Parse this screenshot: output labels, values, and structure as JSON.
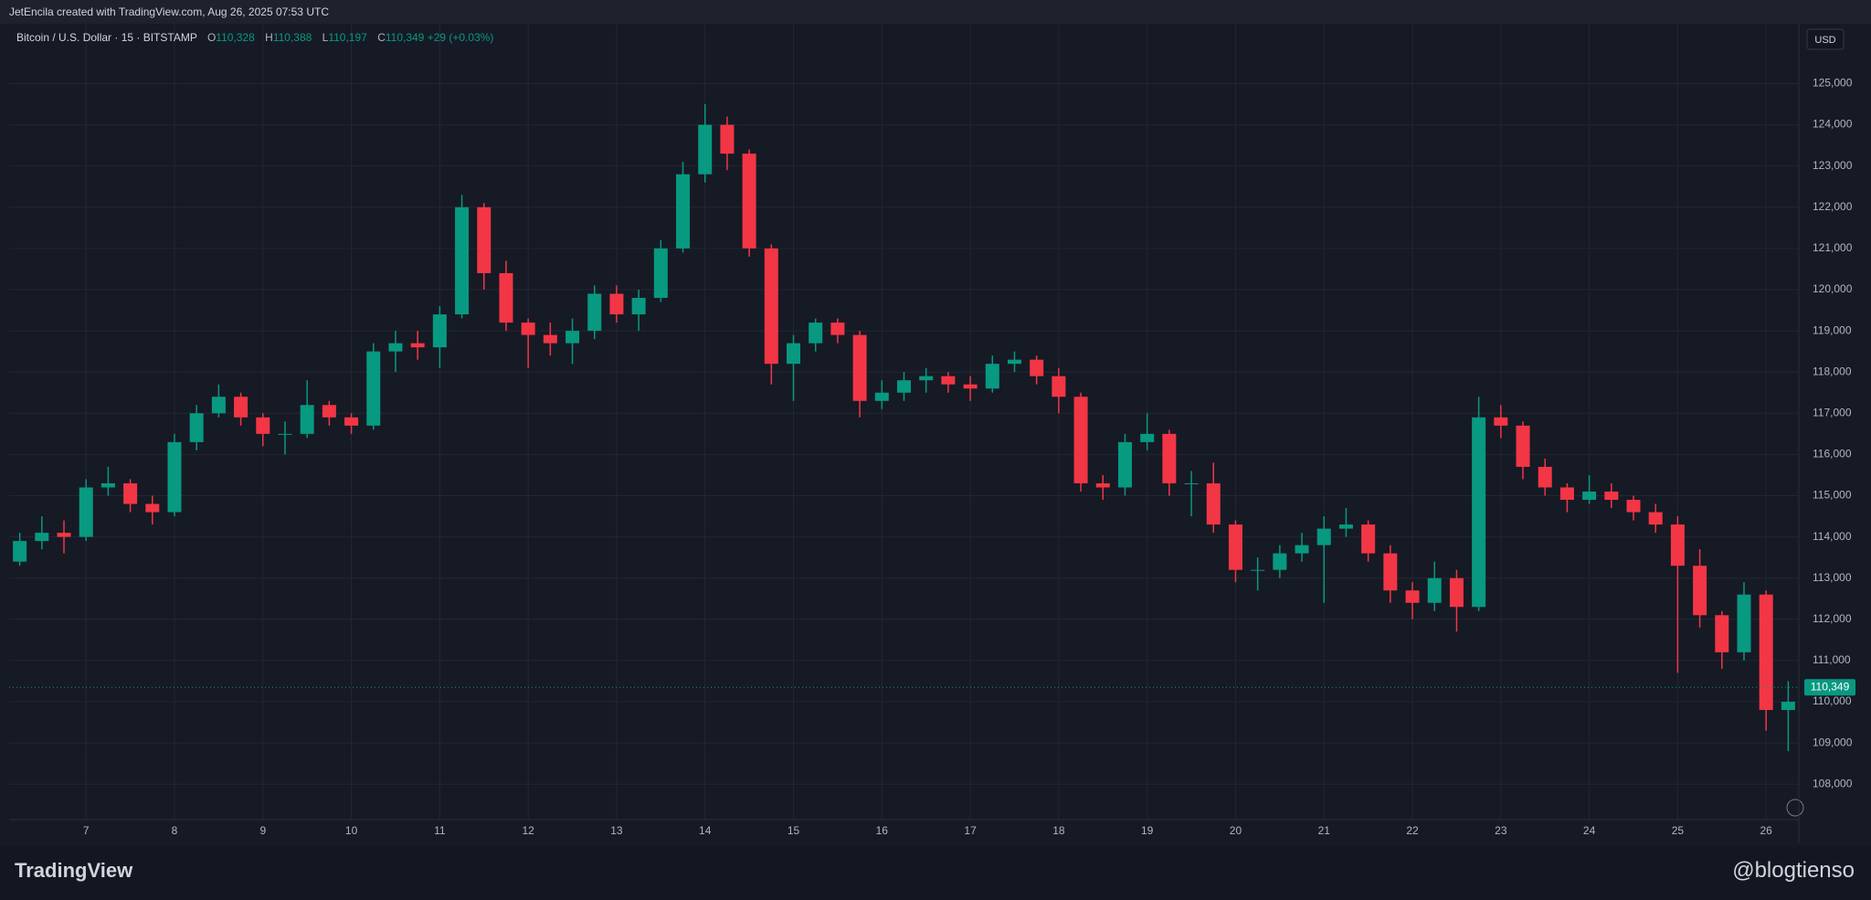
{
  "header": {
    "attribution": "JetEncila created with TradingView.com, Aug 26, 2025 07:53 UTC"
  },
  "legend": {
    "symbol": "Bitcoin / U.S. Dollar · 15 · BITSTAMP",
    "open_label": "O",
    "open": "110,328",
    "high_label": "H",
    "high": "110,388",
    "low_label": "L",
    "low": "110,197",
    "close_label": "C",
    "close": "110,349",
    "change": "+29 (+0.03%)"
  },
  "currency": "USD",
  "footer": {
    "brand": "TradingView",
    "watermark": "@blogtienso"
  },
  "chart_data": {
    "type": "candlestick",
    "x": [
      6.25,
      6.5,
      6.75,
      7,
      7.25,
      7.5,
      7.75,
      8,
      8.25,
      8.5,
      8.75,
      9,
      9.25,
      9.5,
      9.75,
      10,
      10.25,
      10.5,
      10.75,
      11,
      11.25,
      11.5,
      11.75,
      12,
      12.25,
      12.5,
      12.75,
      13,
      13.25,
      13.5,
      13.75,
      14,
      14.25,
      14.5,
      14.75,
      15,
      15.25,
      15.5,
      15.75,
      16,
      16.25,
      16.5,
      16.75,
      17,
      17.25,
      17.5,
      17.75,
      18,
      18.25,
      18.5,
      18.75,
      19,
      19.25,
      19.5,
      19.75,
      20,
      20.25,
      20.5,
      20.75,
      21,
      21.25,
      21.5,
      21.75,
      22,
      22.25,
      22.5,
      22.75,
      23,
      23.25,
      23.5,
      23.75,
      24,
      24.25,
      24.5,
      24.75,
      25,
      25.25,
      25.5,
      25.75,
      26,
      26.25
    ],
    "open": [
      113400,
      113900,
      114100,
      114000,
      115200,
      115300,
      114800,
      114600,
      116300,
      117000,
      117400,
      116900,
      116500,
      116500,
      117200,
      116900,
      116700,
      118500,
      118700,
      118600,
      119400,
      122000,
      120400,
      119200,
      118900,
      118700,
      119000,
      119900,
      119400,
      119800,
      121000,
      122800,
      124000,
      123300,
      121000,
      118200,
      118700,
      119200,
      118900,
      117300,
      117500,
      117800,
      117900,
      117700,
      117600,
      118200,
      118300,
      117900,
      117400,
      115300,
      115200,
      116300,
      116500,
      115300,
      115300,
      114300,
      113200,
      113200,
      113600,
      113800,
      114200,
      114300,
      113600,
      112700,
      112400,
      113000,
      112300,
      116900,
      116700,
      115700,
      115200,
      114900,
      115100,
      114900,
      114600,
      114300,
      113300,
      112100,
      111200,
      112600,
      109800
    ],
    "high": [
      114100,
      114500,
      114400,
      115400,
      115700,
      115400,
      115000,
      116500,
      117200,
      117700,
      117500,
      117000,
      116800,
      117800,
      117300,
      117000,
      118700,
      119000,
      119000,
      119600,
      122300,
      122100,
      120700,
      119300,
      119200,
      119300,
      120100,
      120100,
      120000,
      121200,
      123100,
      124500,
      124200,
      123400,
      121100,
      118900,
      119300,
      119300,
      119000,
      117800,
      118000,
      118100,
      118000,
      117900,
      118400,
      118500,
      118400,
      118100,
      117500,
      115500,
      116500,
      117000,
      116600,
      115600,
      115800,
      114400,
      113500,
      113800,
      114100,
      114500,
      114700,
      114400,
      113800,
      112900,
      113400,
      113200,
      117400,
      117200,
      116800,
      115900,
      115300,
      115500,
      115300,
      115000,
      114800,
      114500,
      113700,
      112200,
      112900,
      112700,
      110500
    ],
    "low": [
      113300,
      113700,
      113600,
      113900,
      115000,
      114600,
      114300,
      114500,
      116100,
      116900,
      116700,
      116200,
      116000,
      116400,
      116700,
      116500,
      116600,
      118000,
      118300,
      118100,
      119300,
      120000,
      119000,
      118100,
      118400,
      118200,
      118800,
      119200,
      119000,
      119700,
      120900,
      122600,
      122900,
      120800,
      117700,
      117300,
      118500,
      118700,
      116900,
      117100,
      117300,
      117500,
      117500,
      117300,
      117500,
      118000,
      117700,
      117000,
      115100,
      114900,
      115000,
      116100,
      115000,
      114500,
      114100,
      112900,
      112700,
      113000,
      113400,
      112400,
      114000,
      113400,
      112400,
      112000,
      112200,
      111700,
      112200,
      116400,
      115400,
      115000,
      114600,
      114800,
      114700,
      114400,
      114100,
      110700,
      111800,
      110800,
      111000,
      109300,
      108800
    ],
    "close": [
      113900,
      114100,
      114000,
      115200,
      115300,
      114800,
      114600,
      116300,
      117000,
      117400,
      116900,
      116500,
      116500,
      117200,
      116900,
      116700,
      118500,
      118700,
      118600,
      119400,
      122000,
      120400,
      119200,
      118900,
      118700,
      119000,
      119900,
      119400,
      119800,
      121000,
      122800,
      124000,
      123300,
      121000,
      118200,
      118700,
      119200,
      118900,
      117300,
      117500,
      117800,
      117900,
      117700,
      117600,
      118200,
      118300,
      117900,
      117400,
      115300,
      115200,
      116300,
      116500,
      115300,
      115300,
      114300,
      113200,
      113200,
      113600,
      113800,
      114200,
      114300,
      113600,
      112700,
      112400,
      113000,
      112300,
      116900,
      116700,
      115700,
      115200,
      114900,
      115100,
      114900,
      114600,
      114300,
      113300,
      112100,
      111200,
      112600,
      109800,
      110000
    ],
    "up_color": "#089981",
    "down_color": "#f23645",
    "xlim": [
      6.13,
      26.37
    ],
    "xticks": [
      7,
      8,
      9,
      10,
      11,
      12,
      13,
      14,
      15,
      16,
      17,
      18,
      19,
      20,
      21,
      22,
      23,
      24,
      25,
      26
    ],
    "ylim": [
      107140,
      126230
    ],
    "yticks": [
      {
        "value": 108000,
        "label": "108,000"
      },
      {
        "value": 109000,
        "label": "109,000"
      },
      {
        "value": 110000,
        "label": "110,000"
      },
      {
        "value": 111000,
        "label": "111,000"
      },
      {
        "value": 112000,
        "label": "112,000"
      },
      {
        "value": 113000,
        "label": "113,000"
      },
      {
        "value": 114000,
        "label": "114,000"
      },
      {
        "value": 115000,
        "label": "115,000"
      },
      {
        "value": 116000,
        "label": "116,000"
      },
      {
        "value": 117000,
        "label": "117,000"
      },
      {
        "value": 118000,
        "label": "118,000"
      },
      {
        "value": 119000,
        "label": "119,000"
      },
      {
        "value": 120000,
        "label": "120,000"
      },
      {
        "value": 121000,
        "label": "121,000"
      },
      {
        "value": 122000,
        "label": "122,000"
      },
      {
        "value": 123000,
        "label": "123,000"
      },
      {
        "value": 124000,
        "label": "124,000"
      },
      {
        "value": 125000,
        "label": "125,000"
      }
    ],
    "grid": true,
    "last_price": {
      "value": 110349,
      "label": "110,349"
    }
  }
}
